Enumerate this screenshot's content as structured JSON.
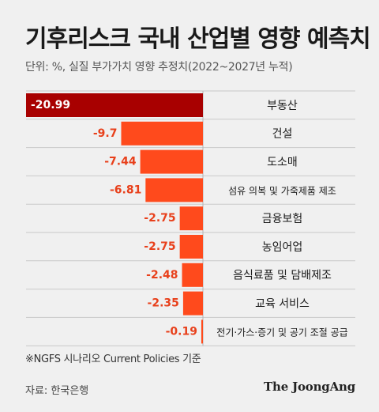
{
  "header": {
    "title": "기후리스크 국내 산업별 영향 예측치",
    "subtitle": "단위: %, 실질 부가가치 영향 추정치(2022~2027년 누적)"
  },
  "footer": {
    "note": "※NGFS 시나리오 Current Policies 기준",
    "source": "자료: 한국은행",
    "brand": "The JoongAng"
  },
  "colors": {
    "bar_top": "#a80000",
    "bar": "#ff4a1c",
    "label_top": "#ffffff",
    "label": "#e8401b",
    "background": "#f0f0f0",
    "grid": "#c9c9c9"
  },
  "chart_data": {
    "type": "bar",
    "orientation": "horizontal",
    "categories": [
      "부동산",
      "건설",
      "도소매",
      "섬유 의복 및 가죽제품 제조",
      "금융보험",
      "농임어업",
      "음식료품 및 담배제조",
      "교육 서비스",
      "전기·가스·증기 및 공기 조절 공급"
    ],
    "values": [
      -20.99,
      -9.7,
      -7.44,
      -6.81,
      -2.75,
      -2.75,
      -2.48,
      -2.35,
      -0.19
    ],
    "value_labels": [
      "-20.99",
      "-9.7",
      "-7.44",
      "-6.81",
      "-2.75",
      "-2.75",
      "-2.48",
      "-2.35",
      "-0.19"
    ],
    "xlim": [
      -20.99,
      0
    ],
    "grid": true,
    "legend": "none"
  }
}
